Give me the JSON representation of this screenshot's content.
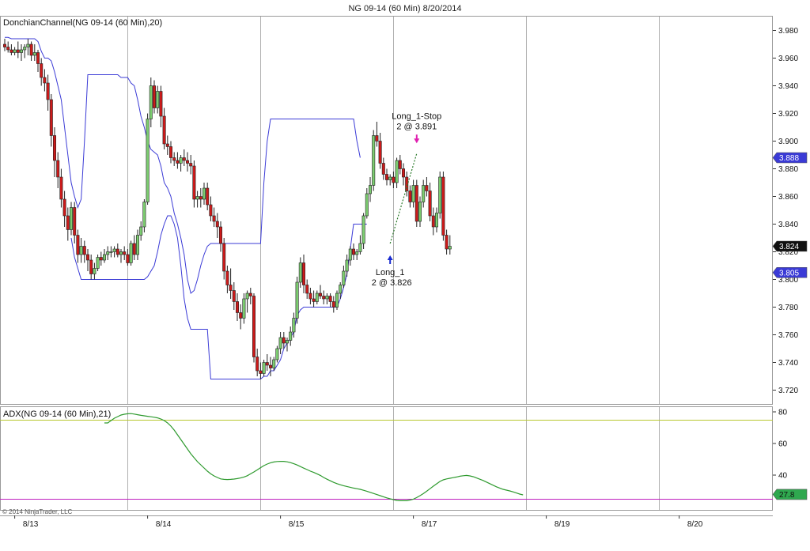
{
  "chart_title": "NG 09-14 (60 Min)  8/20/2014",
  "copyright": "© 2014 NinjaTrader, LLC",
  "colors": {
    "up_candle": "#7ccd70",
    "down_candle": "#cc1a1a",
    "channel": "#3b3bd6",
    "adx": "#2e9a2e",
    "adx_level_high": "#b8c830",
    "adx_level_low": "#c020c0",
    "entry_arrow": "#1a2cd0",
    "exit_arrow": "#e020b0"
  },
  "chart_data": [
    {
      "type": "candlestick",
      "panel_label": "DonchianChannel(NG 09-14 (60 Min),20)",
      "ylim": [
        3.71,
        3.99
      ],
      "y_ticks": [
        3.72,
        3.74,
        3.76,
        3.78,
        3.8,
        3.82,
        3.84,
        3.86,
        3.88,
        3.9,
        3.92,
        3.94,
        3.96,
        3.98
      ],
      "y_tick_labels": [
        "3.720",
        "3.740",
        "3.760",
        "3.780",
        "3.800",
        "3.820",
        "3.840",
        "3.860",
        "3.880",
        "3.900",
        "3.920",
        "3.940",
        "3.960",
        "3.980"
      ],
      "x_labels": [
        {
          "bar": 3,
          "text": "8/13"
        },
        {
          "bar": 43,
          "text": "8/14"
        },
        {
          "bar": 83,
          "text": "8/15"
        },
        {
          "bar": 123,
          "text": "8/17"
        },
        {
          "bar": 163,
          "text": "8/19"
        },
        {
          "bar": 203,
          "text": "8/20"
        }
      ],
      "session_dividers": [
        37,
        77,
        117,
        157,
        197
      ],
      "ohlc": [
        [
          3.97,
          3.974,
          3.965,
          3.968
        ],
        [
          3.968,
          3.972,
          3.964,
          3.966
        ],
        [
          3.966,
          3.97,
          3.962,
          3.964
        ],
        [
          3.964,
          3.968,
          3.962,
          3.966
        ],
        [
          3.966,
          3.972,
          3.96,
          3.964
        ],
        [
          3.964,
          3.97,
          3.958,
          3.966
        ],
        [
          3.966,
          3.97,
          3.96,
          3.968
        ],
        [
          3.968,
          3.974,
          3.962,
          3.97
        ],
        [
          3.97,
          3.972,
          3.958,
          3.962
        ],
        [
          3.962,
          3.97,
          3.958,
          3.964
        ],
        [
          3.964,
          3.966,
          3.95,
          3.956
        ],
        [
          3.956,
          3.96,
          3.94,
          3.946
        ],
        [
          3.946,
          3.952,
          3.936,
          3.942
        ],
        [
          3.942,
          3.948,
          3.922,
          3.93
        ],
        [
          3.93,
          3.934,
          3.896,
          3.904
        ],
        [
          3.904,
          3.91,
          3.874,
          3.886
        ],
        [
          3.886,
          3.892,
          3.866,
          3.874
        ],
        [
          3.874,
          3.88,
          3.852,
          3.858
        ],
        [
          3.858,
          3.864,
          3.838,
          3.846
        ],
        [
          3.846,
          3.852,
          3.828,
          3.836
        ],
        [
          3.836,
          3.856,
          3.832,
          3.852
        ],
        [
          3.852,
          3.856,
          3.826,
          3.832
        ],
        [
          3.832,
          3.836,
          3.812,
          3.818
        ],
        [
          3.818,
          3.83,
          3.812,
          3.824
        ],
        [
          3.824,
          3.828,
          3.812,
          3.818
        ],
        [
          3.818,
          3.822,
          3.806,
          3.814
        ],
        [
          3.814,
          3.818,
          3.8,
          3.804
        ],
        [
          3.804,
          3.812,
          3.8,
          3.808
        ],
        [
          3.808,
          3.818,
          3.806,
          3.816
        ],
        [
          3.816,
          3.82,
          3.81,
          3.814
        ],
        [
          3.814,
          3.822,
          3.812,
          3.818
        ],
        [
          3.818,
          3.824,
          3.814,
          3.82
        ],
        [
          3.82,
          3.824,
          3.816,
          3.82
        ],
        [
          3.82,
          3.824,
          3.816,
          3.822
        ],
        [
          3.822,
          3.826,
          3.816,
          3.818
        ],
        [
          3.818,
          3.822,
          3.812,
          3.82
        ],
        [
          3.82,
          3.824,
          3.814,
          3.818
        ],
        [
          3.818,
          3.822,
          3.81,
          3.812
        ],
        [
          3.812,
          3.828,
          3.81,
          3.826
        ],
        [
          3.826,
          3.832,
          3.814,
          3.818
        ],
        [
          3.818,
          3.836,
          3.814,
          3.832
        ],
        [
          3.832,
          3.842,
          3.828,
          3.838
        ],
        [
          3.838,
          3.858,
          3.834,
          3.856
        ],
        [
          3.856,
          3.92,
          3.854,
          3.916
        ],
        [
          3.916,
          3.946,
          3.91,
          3.94
        ],
        [
          3.94,
          3.944,
          3.92,
          3.924
        ],
        [
          3.924,
          3.94,
          3.92,
          3.936
        ],
        [
          3.936,
          3.94,
          3.91,
          3.918
        ],
        [
          3.918,
          3.924,
          3.894,
          3.898
        ],
        [
          3.898,
          3.904,
          3.89,
          3.896
        ],
        [
          3.896,
          3.9,
          3.884,
          3.888
        ],
        [
          3.888,
          3.892,
          3.882,
          3.886
        ],
        [
          3.886,
          3.892,
          3.88,
          3.884
        ],
        [
          3.884,
          3.89,
          3.878,
          3.888
        ],
        [
          3.888,
          3.894,
          3.882,
          3.886
        ],
        [
          3.886,
          3.892,
          3.878,
          3.884
        ],
        [
          3.884,
          3.89,
          3.876,
          3.882
        ],
        [
          3.882,
          3.886,
          3.852,
          3.858
        ],
        [
          3.858,
          3.864,
          3.852,
          3.86
        ],
        [
          3.86,
          3.866,
          3.852,
          3.858
        ],
        [
          3.858,
          3.87,
          3.854,
          3.866
        ],
        [
          3.866,
          3.87,
          3.85,
          3.854
        ],
        [
          3.854,
          3.86,
          3.842,
          3.846
        ],
        [
          3.846,
          3.852,
          3.838,
          3.842
        ],
        [
          3.842,
          3.848,
          3.83,
          3.838
        ],
        [
          3.838,
          3.842,
          3.82,
          3.826
        ],
        [
          3.826,
          3.83,
          3.8,
          3.806
        ],
        [
          3.806,
          3.81,
          3.79,
          3.796
        ],
        [
          3.796,
          3.808,
          3.786,
          3.792
        ],
        [
          3.792,
          3.798,
          3.778,
          3.784
        ],
        [
          3.784,
          3.79,
          3.77,
          3.776
        ],
        [
          3.776,
          3.782,
          3.764,
          3.772
        ],
        [
          3.772,
          3.79,
          3.768,
          3.786
        ],
        [
          3.786,
          3.792,
          3.776,
          3.79
        ],
        [
          3.79,
          3.794,
          3.782,
          3.788
        ],
        [
          3.788,
          3.79,
          3.74,
          3.744
        ],
        [
          3.744,
          3.75,
          3.73,
          3.734
        ],
        [
          3.734,
          3.74,
          3.728,
          3.732
        ],
        [
          3.732,
          3.742,
          3.73,
          3.74
        ],
        [
          3.74,
          3.746,
          3.734,
          3.738
        ],
        [
          3.738,
          3.744,
          3.73,
          3.736
        ],
        [
          3.736,
          3.744,
          3.734,
          3.742
        ],
        [
          3.742,
          3.752,
          3.74,
          3.75
        ],
        [
          3.75,
          3.762,
          3.746,
          3.758
        ],
        [
          3.758,
          3.762,
          3.75,
          3.754
        ],
        [
          3.754,
          3.758,
          3.748,
          3.756
        ],
        [
          3.756,
          3.766,
          3.752,
          3.762
        ],
        [
          3.762,
          3.776,
          3.758,
          3.772
        ],
        [
          3.772,
          3.802,
          3.768,
          3.798
        ],
        [
          3.798,
          3.816,
          3.794,
          3.812
        ],
        [
          3.812,
          3.818,
          3.79,
          3.796
        ],
        [
          3.796,
          3.8,
          3.786,
          3.79
        ],
        [
          3.79,
          3.794,
          3.782,
          3.786
        ],
        [
          3.786,
          3.792,
          3.78,
          3.784
        ],
        [
          3.784,
          3.792,
          3.782,
          3.79
        ],
        [
          3.79,
          3.796,
          3.786,
          3.788
        ],
        [
          3.788,
          3.792,
          3.782,
          3.786
        ],
        [
          3.786,
          3.79,
          3.782,
          3.788
        ],
        [
          3.788,
          3.79,
          3.78,
          3.784
        ],
        [
          3.784,
          3.788,
          3.776,
          3.78
        ],
        [
          3.78,
          3.792,
          3.778,
          3.79
        ],
        [
          3.79,
          3.798,
          3.786,
          3.796
        ],
        [
          3.796,
          3.81,
          3.794,
          3.806
        ],
        [
          3.806,
          3.818,
          3.802,
          3.814
        ],
        [
          3.814,
          3.824,
          3.81,
          3.822
        ],
        [
          3.822,
          3.826,
          3.814,
          3.818
        ],
        [
          3.818,
          3.822,
          3.814,
          3.82
        ],
        [
          3.82,
          3.832,
          3.818,
          3.826
        ],
        [
          3.826,
          3.848,
          3.822,
          3.846
        ],
        [
          3.846,
          3.866,
          3.844,
          3.862
        ],
        [
          3.862,
          3.874,
          3.856,
          3.868
        ],
        [
          3.868,
          3.908,
          3.864,
          3.904
        ],
        [
          3.904,
          3.914,
          3.896,
          3.9
        ],
        [
          3.9,
          3.906,
          3.88,
          3.884
        ],
        [
          3.884,
          3.888,
          3.872,
          3.876
        ],
        [
          3.876,
          3.88,
          3.868,
          3.872
        ],
        [
          3.872,
          3.876,
          3.868,
          3.874
        ],
        [
          3.874,
          3.878,
          3.866,
          3.87
        ],
        [
          3.87,
          3.888,
          3.866,
          3.886
        ],
        [
          3.886,
          3.89,
          3.876,
          3.88
        ],
        [
          3.88,
          3.884,
          3.868,
          3.874
        ],
        [
          3.874,
          3.878,
          3.86,
          3.864
        ],
        [
          3.864,
          3.868,
          3.852,
          3.856
        ],
        [
          3.856,
          3.872,
          3.852,
          3.868
        ],
        [
          3.868,
          3.872,
          3.838,
          3.842
        ],
        [
          3.842,
          3.86,
          3.838,
          3.856
        ],
        [
          3.856,
          3.872,
          3.852,
          3.868
        ],
        [
          3.868,
          3.874,
          3.86,
          3.864
        ],
        [
          3.864,
          3.87,
          3.842,
          3.846
        ],
        [
          3.846,
          3.852,
          3.832,
          3.838
        ],
        [
          3.838,
          3.852,
          3.834,
          3.848
        ],
        [
          3.848,
          3.878,
          3.844,
          3.874
        ],
        [
          3.874,
          3.878,
          3.828,
          3.832
        ],
        [
          3.832,
          3.836,
          3.818,
          3.822
        ],
        [
          3.822,
          3.832,
          3.818,
          3.824
        ]
      ],
      "donchian_upper": [
        3.975,
        3.975,
        3.974,
        3.974,
        3.974,
        3.974,
        3.974,
        3.974,
        3.974,
        3.974,
        3.972,
        3.965,
        3.96,
        3.96,
        3.958,
        3.95,
        3.94,
        3.93,
        3.91,
        3.89,
        3.87,
        3.86,
        3.852,
        3.858,
        3.9,
        3.948,
        3.948,
        3.948,
        3.948,
        3.948,
        3.948,
        3.948,
        3.948,
        3.948,
        3.948,
        3.946,
        3.946,
        3.946,
        3.942,
        3.94,
        3.93,
        3.918,
        3.91,
        3.9,
        3.894,
        3.892,
        3.89,
        3.882,
        3.87,
        3.866,
        3.86,
        3.848,
        3.84,
        3.83,
        3.818,
        3.8,
        3.79,
        3.792,
        3.8,
        3.81,
        3.818,
        3.824,
        3.826,
        3.826,
        3.826,
        3.826,
        3.826,
        3.826,
        3.826,
        3.826,
        3.826,
        3.826,
        3.826,
        3.826,
        3.826,
        3.826,
        3.826,
        3.826,
        3.87,
        3.9,
        3.916,
        3.916,
        3.916,
        3.916,
        3.916,
        3.916,
        3.916,
        3.916,
        3.916,
        3.916,
        3.916,
        3.916,
        3.916,
        3.916,
        3.916,
        3.916,
        3.916,
        3.916,
        3.916,
        3.916,
        3.916,
        3.916,
        3.916,
        3.916,
        3.916,
        3.916,
        3.9,
        3.888
      ],
      "donchian_lower": [
        null,
        null,
        null,
        null,
        null,
        null,
        null,
        null,
        null,
        null,
        null,
        null,
        null,
        null,
        null,
        null,
        null,
        null,
        null,
        null,
        3.83,
        3.816,
        3.808,
        3.8,
        3.8,
        3.8,
        3.8,
        3.8,
        3.8,
        3.8,
        3.8,
        3.8,
        3.8,
        3.8,
        3.8,
        3.8,
        3.8,
        3.8,
        3.8,
        3.8,
        3.8,
        3.8,
        3.8,
        3.802,
        3.806,
        3.81,
        3.82,
        3.832,
        3.84,
        3.846,
        3.846,
        3.84,
        3.83,
        3.81,
        3.786,
        3.772,
        3.764,
        3.764,
        3.764,
        3.764,
        3.764,
        3.764,
        3.728,
        3.728,
        3.728,
        3.728,
        3.728,
        3.728,
        3.728,
        3.728,
        3.728,
        3.728,
        3.728,
        3.728,
        3.728,
        3.728,
        3.728,
        3.728,
        3.73,
        3.73,
        3.734,
        3.734,
        3.738,
        3.742,
        3.75,
        3.754,
        3.758,
        3.762,
        3.774,
        3.778,
        3.78,
        3.78,
        3.78,
        3.78,
        3.78,
        3.78,
        3.78,
        3.78,
        3.78,
        3.78,
        3.78,
        3.786,
        3.794,
        3.804,
        3.822,
        3.84,
        3.84,
        3.84,
        3.84,
        3.84
      ],
      "current_price_label": "3.824",
      "upper_band_label": "3.888",
      "lower_band_label": "3.805",
      "trades": [
        {
          "type": "entry",
          "name": "Long_1",
          "detail": "2 @ 3.826",
          "bar": 116,
          "price": 3.826
        },
        {
          "type": "exit",
          "name": "Long_1-Stop",
          "detail": "2 @ 3.891",
          "bar": 124,
          "price": 3.891
        }
      ]
    },
    {
      "type": "line",
      "panel_label": "ADX(NG 09-14 (60 Min),21)",
      "ylim": [
        18,
        83
      ],
      "y_ticks": [
        40,
        60,
        80
      ],
      "y_tick_labels": [
        "40",
        "60",
        "80"
      ],
      "levels": [
        75,
        25
      ],
      "current_value_label": "27.8",
      "adx": [
        73,
        73,
        74.5,
        76,
        77,
        78,
        78.5,
        78.8,
        78.9,
        78.6,
        78.2,
        77.8,
        77.5,
        77.2,
        76.9,
        76.6,
        76.2,
        75.5,
        74.5,
        73,
        71,
        68.5,
        65.5,
        62.5,
        59.5,
        56.5,
        53.5,
        51,
        48.5,
        46.5,
        44.5,
        42.5,
        40.8,
        39.5,
        38.5,
        37.6,
        37.3,
        37.2,
        37.3,
        37.5,
        37.8,
        38.2,
        38.8,
        39.6,
        40.8,
        42,
        43.3,
        44.7,
        46,
        47,
        47.8,
        48.3,
        48.6,
        48.7,
        48.7,
        48.4,
        47.9,
        47.2,
        46.4,
        45.4,
        44.4,
        43.5,
        42.5,
        41.7,
        40.8,
        39.8,
        38.5,
        37.4,
        36.4,
        35.4,
        34.6,
        33.9,
        33.3,
        32.8,
        32.3,
        31.8,
        31.4,
        31,
        30.4,
        29.8,
        29.1,
        28.4,
        27.7,
        27,
        26.3,
        25.6,
        25,
        24.5,
        24,
        23.8,
        23.8,
        23.8,
        24.2,
        24.8,
        25.8,
        27,
        28.3,
        29.8,
        31.4,
        33,
        34.5,
        36,
        37,
        37.6,
        38,
        38.4,
        38.8,
        39.3,
        39.6,
        39.8,
        39.5,
        39,
        38.2,
        37.4,
        36.6,
        35.6,
        34.6,
        33.6,
        32.6,
        31.8,
        31,
        30.5,
        30,
        29.4,
        28.7,
        28,
        27.5
      ]
    }
  ]
}
